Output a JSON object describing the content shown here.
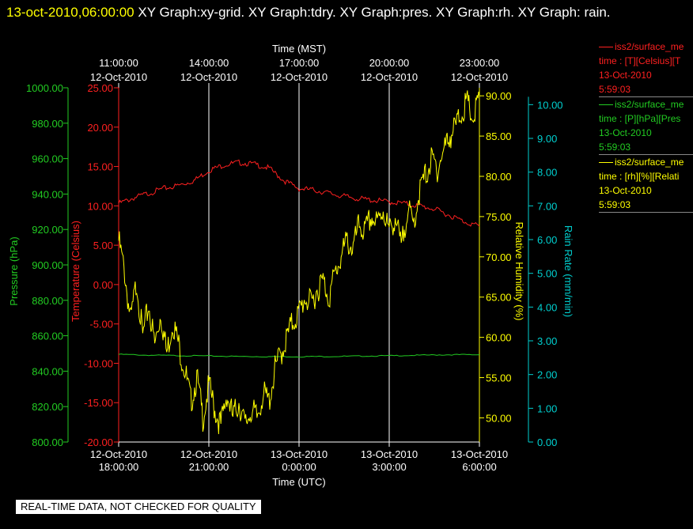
{
  "header": {
    "timestamp": "13-oct-2010,06:00:00",
    "graphs": "XY Graph:xy-grid.  XY Graph:tdry.  XY Graph:pres.  XY Graph:rh.  XY Graph: rain."
  },
  "colors": {
    "temperature": "#ff2020",
    "pressure": "#22cc22",
    "rh": "#ffff00",
    "rain": "#00d0d0",
    "grid": "#ffffff"
  },
  "legend": [
    {
      "line1": "iss2/surface_me",
      "line2": "time : [T][Celsius][T",
      "line3": "13-Oct-2010",
      "line4": "5:59:03",
      "color": "#ff2020"
    },
    {
      "line1": "iss2/surface_me",
      "line2": "time : [P][hPa][Pres",
      "line3": "13-Oct-2010",
      "line4": "5:59:03",
      "color": "#22cc22"
    },
    {
      "line1": "iss2/surface_me",
      "line2": "time : [rh][%][Relati",
      "line3": "13-Oct-2010",
      "line4": "5:59:03",
      "color": "#ffff00"
    }
  ],
  "note": "REAL-TIME DATA, NOT CHECKED FOR QUALITY",
  "chart_data": {
    "type": "line",
    "xlabel_bottom": "Time (UTC)",
    "xlabel_top": "Time (MST)",
    "x_ticks_bottom": [
      {
        "date": "12-Oct-2010",
        "time": "18:00:00"
      },
      {
        "date": "12-Oct-2010",
        "time": "21:00:00"
      },
      {
        "date": "13-Oct-2010",
        "time": "0:00:00"
      },
      {
        "date": "13-Oct-2010",
        "time": "3:00:00"
      },
      {
        "date": "13-Oct-2010",
        "time": "6:00:00"
      }
    ],
    "x_ticks_top": [
      {
        "time": "11:00:00",
        "date": "12-Oct-2010"
      },
      {
        "time": "14:00:00",
        "date": "12-Oct-2010"
      },
      {
        "time": "17:00:00",
        "date": "12-Oct-2010"
      },
      {
        "time": "20:00:00",
        "date": "12-Oct-2010"
      },
      {
        "time": "23:00:00",
        "date": "12-Oct-2010"
      }
    ],
    "x_unit": "hours since 12-Oct-2010 18:00 UTC",
    "xlim": [
      0,
      12
    ],
    "axes": [
      {
        "key": "pres",
        "label": "Pressure (hPa)",
        "ylim": [
          800,
          1000
        ],
        "ticks": [
          "800.00",
          "820.00",
          "840.00",
          "860.00",
          "880.00",
          "900.00",
          "920.00",
          "940.00",
          "960.00",
          "980.00",
          "1000.00"
        ]
      },
      {
        "key": "tdry",
        "label": "Temperature (Celsius)",
        "ylim": [
          -20,
          25
        ],
        "ticks": [
          "-20.00",
          "-15.00",
          "-10.00",
          "-5.00",
          "0.00",
          "5.00",
          "10.00",
          "15.00",
          "20.00",
          "25.00"
        ]
      },
      {
        "key": "rh",
        "label": "Relative Humidity (%)",
        "ylim": [
          47,
          91
        ],
        "ticks": [
          "50.00",
          "55.00",
          "60.00",
          "65.00",
          "70.00",
          "75.00",
          "80.00",
          "85.00",
          "90.00"
        ]
      },
      {
        "key": "rain",
        "label": "Rain Rate (mm/min)",
        "ylim": [
          0,
          10.5
        ],
        "ticks": [
          "0.00",
          "1.00",
          "2.00",
          "3.00",
          "4.00",
          "5.00",
          "6.00",
          "7.00",
          "8.00",
          "9.00",
          "10.00"
        ]
      }
    ],
    "series": [
      {
        "name": "Temperature",
        "axis": "tdry",
        "x": [
          0,
          0.5,
          1,
          1.5,
          2,
          2.5,
          3,
          3.5,
          4,
          4.5,
          5,
          5.5,
          6,
          6.5,
          7,
          7.5,
          8,
          8.5,
          9,
          9.5,
          10,
          10.5,
          11,
          11.5,
          12
        ],
        "y": [
          10.3,
          11.0,
          11.6,
          12.2,
          12.6,
          13.2,
          14.5,
          15.2,
          15.5,
          15.3,
          14.8,
          13.2,
          12.2,
          12.0,
          11.6,
          11.2,
          10.9,
          10.7,
          10.5,
          10.3,
          10.0,
          9.6,
          8.8,
          8.0,
          7.4
        ]
      },
      {
        "name": "Pressure",
        "axis": "pres",
        "x": [
          0,
          1,
          2,
          3,
          4,
          5,
          6,
          7,
          8,
          9,
          10,
          11,
          12
        ],
        "y": [
          849.5,
          849.0,
          848.8,
          848.6,
          848.3,
          848.2,
          848.2,
          848.3,
          848.5,
          848.7,
          849.0,
          849.3,
          849.3
        ]
      },
      {
        "name": "Relative Humidity",
        "axis": "rh",
        "x": [
          0,
          0.2,
          0.4,
          0.6,
          0.8,
          1.0,
          1.2,
          1.4,
          1.6,
          1.8,
          2.0,
          2.2,
          2.4,
          2.6,
          2.8,
          3.0,
          3.2,
          3.4,
          3.6,
          3.8,
          4.0,
          4.2,
          4.4,
          4.6,
          4.8,
          5.0,
          5.2,
          5.4,
          5.6,
          5.8,
          6.0,
          6.2,
          6.4,
          6.6,
          6.8,
          7.0,
          7.2,
          7.4,
          7.6,
          7.8,
          8.0,
          8.2,
          8.4,
          8.6,
          8.8,
          9.0,
          9.2,
          9.4,
          9.6,
          9.8,
          10.0,
          10.2,
          10.4,
          10.6,
          10.8,
          11.0,
          11.2,
          11.4,
          11.6,
          11.8,
          12.0
        ],
        "y": [
          72,
          68,
          62,
          67,
          60,
          64,
          59,
          63,
          58,
          62,
          59,
          56,
          52,
          55,
          50,
          54,
          51,
          49,
          53,
          50,
          52,
          49,
          51,
          50,
          53,
          52,
          56,
          58,
          60,
          62,
          63,
          65,
          64,
          66,
          67,
          65,
          68,
          70,
          72,
          71,
          74,
          73,
          75,
          74,
          76,
          73,
          75,
          71,
          76,
          74,
          78,
          80,
          82,
          81,
          83,
          85,
          86,
          88,
          89,
          87,
          90
        ]
      }
    ]
  }
}
